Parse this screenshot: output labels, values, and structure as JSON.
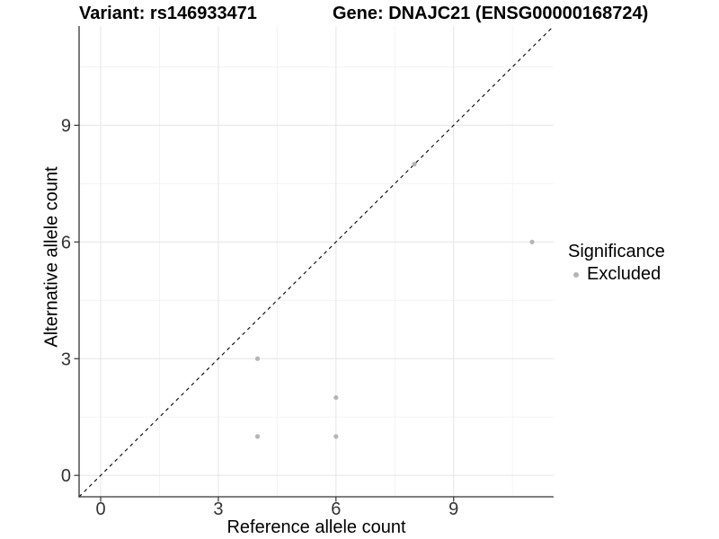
{
  "chart_data": {
    "type": "scatter",
    "title_left": "Variant: rs146933471",
    "title_right": "Gene: DNAJC21 (ENSG00000168724)",
    "xlabel": "Reference allele count",
    "ylabel": "Alternative allele count",
    "xlim": [
      -0.55,
      11.55
    ],
    "ylim": [
      -0.55,
      11.55
    ],
    "x_ticks": [
      0,
      3,
      6,
      9
    ],
    "y_ticks": [
      0,
      3,
      6,
      9
    ],
    "minor_ticks": [
      1.5,
      4.5,
      7.5,
      10.5
    ],
    "grid": "major+minor",
    "legend_position": "right-center",
    "series": [
      {
        "name": "Excluded",
        "color": "#b5b5b5",
        "points": [
          [
            4,
            1
          ],
          [
            4,
            3
          ],
          [
            6,
            1
          ],
          [
            6,
            2
          ],
          [
            8,
            8
          ],
          [
            11,
            6
          ]
        ]
      }
    ],
    "reference_line": {
      "type": "identity",
      "slope": 1,
      "intercept": 0,
      "style": "dashed",
      "color": "#000000"
    },
    "legend": {
      "title": "Significance",
      "items": [
        {
          "label": "Excluded",
          "color": "#b5b5b5"
        }
      ]
    },
    "colors": {
      "axis_line": "#333333",
      "tick_label": "#333333",
      "major_grid": "#e7e7e7",
      "minor_grid": "#f2f2f2",
      "background": "#ffffff"
    }
  }
}
